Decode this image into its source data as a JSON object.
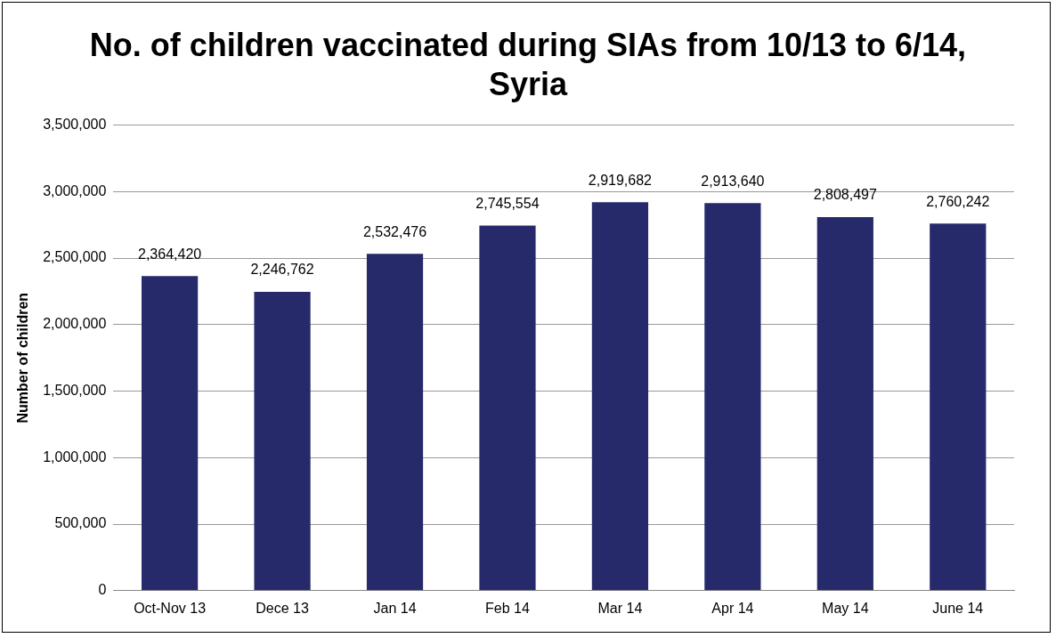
{
  "chart_data": {
    "type": "bar",
    "title": "No. of children vaccinated during SIAs from 10/13 to 6/14, Syria",
    "ylabel": "Number of children",
    "categories": [
      "Oct-Nov 13",
      "Dece 13",
      "Jan 14",
      "Feb 14",
      "Mar 14",
      "Apr 14",
      "May 14",
      "June 14"
    ],
    "values": [
      2364420,
      2246762,
      2532476,
      2745554,
      2919682,
      2913640,
      2808497,
      2760242
    ],
    "value_labels": [
      "2,364,420",
      "2,246,762",
      "2,532,476",
      "2,745,554",
      "2,919,682",
      "2,913,640",
      "2,808,497",
      "2,760,242"
    ],
    "color": "#262a6b",
    "ylim": [
      0,
      3500000
    ],
    "yticks": [
      0,
      {
        "value": 500000,
        "label": "500,000"
      },
      {
        "value": 1000000,
        "label": "1,000,000"
      },
      {
        "value": 1500000,
        "label": "1,500,000"
      },
      {
        "value": 2000000,
        "label": "2,000,000"
      },
      {
        "value": 2500000,
        "label": "2,500,000"
      },
      {
        "value": 3000000,
        "label": "3,000,000"
      },
      {
        "value": 3500000,
        "label": "3,500,000"
      }
    ],
    "grid": "y",
    "legend": false
  }
}
